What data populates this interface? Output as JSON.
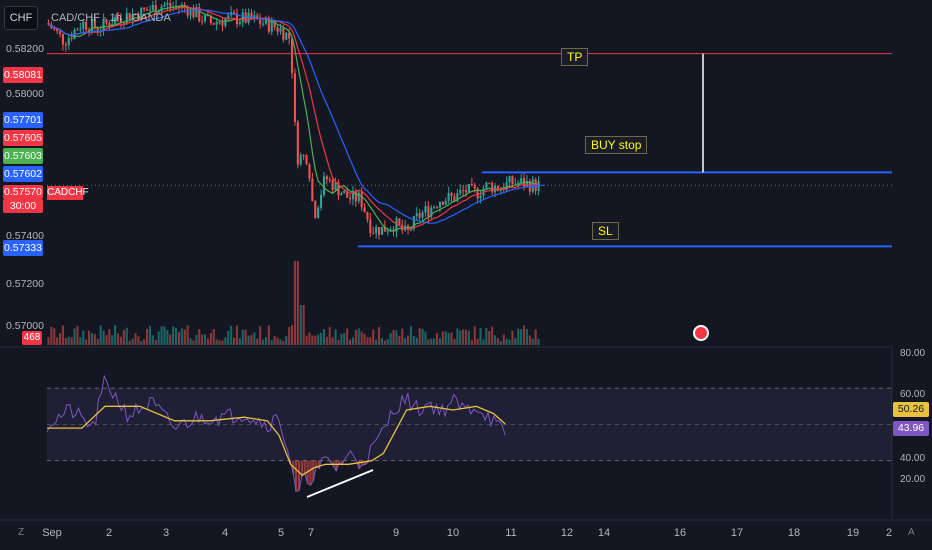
{
  "header": {
    "currency_button": "CHF",
    "title": "CAD/CHF · 1h · OANDA"
  },
  "price_axis": {
    "labels": [
      "0.58200",
      "0.58000",
      "0.57400",
      "0.57200",
      "0.57000"
    ]
  },
  "price_badges": {
    "tp": "0.58081",
    "b1": "0.57701",
    "b2": "0.57605",
    "b3": "0.57603",
    "b4": "0.57602",
    "last_price": "0.57570",
    "countdown": "30:00",
    "sl": "0.57333",
    "symbol_tag": "CADCHF",
    "volume": "468"
  },
  "annotations": {
    "tp": "TP",
    "buy_stop": "BUY stop",
    "sl": "SL"
  },
  "rsi_axis": {
    "labels": [
      "80.00",
      "60.00",
      "40.00",
      "20.00"
    ],
    "rsi_value": "43.96",
    "rsi_ma_value": "50.26"
  },
  "time_axis": {
    "labels": [
      "Sep",
      "2",
      "3",
      "4",
      "5",
      "7",
      "9",
      "10",
      "11",
      "12",
      "14",
      "16",
      "17",
      "18",
      "19",
      "2"
    ]
  },
  "corner": {
    "left": "Z",
    "right": "A"
  },
  "colors": {
    "background": "#131722",
    "up": "#26a69a",
    "down": "#ef5350",
    "ma_fast": "#f23645",
    "ma_mid": "#4caf50",
    "ma_slow": "#2962ff",
    "rsi": "#7e57c2",
    "rsi_ma": "#e8c13d",
    "tp_line": "#f23645",
    "order_lines": "#2962ff",
    "annotation_text": "#fffb00"
  },
  "chart_data": {
    "type": "candlestick",
    "symbol": "CAD/CHF",
    "interval": "1h",
    "y_range": [
      0.5695,
      0.5827
    ],
    "levels": {
      "tp": 0.58081,
      "buy_stop": 0.5762,
      "sl": 0.57333,
      "last": 0.5757
    },
    "close_path": [
      [
        0,
        0.582
      ],
      [
        3,
        0.5813
      ],
      [
        6,
        0.582
      ],
      [
        9,
        0.5818
      ],
      [
        12,
        0.5822
      ],
      [
        16,
        0.5824
      ],
      [
        20,
        0.5827
      ],
      [
        24,
        0.5826
      ],
      [
        28,
        0.582
      ],
      [
        32,
        0.5822
      ],
      [
        36,
        0.5821
      ],
      [
        40,
        0.5818
      ],
      [
        42,
        0.5814
      ],
      [
        43,
        0.5768
      ],
      [
        45,
        0.5768
      ],
      [
        46,
        0.5745
      ],
      [
        48,
        0.576
      ],
      [
        52,
        0.5752
      ],
      [
        54,
        0.5752
      ],
      [
        56,
        0.574
      ],
      [
        58,
        0.574
      ],
      [
        60,
        0.5742
      ],
      [
        62,
        0.5738
      ],
      [
        64,
        0.5745
      ],
      [
        66,
        0.5748
      ],
      [
        68,
        0.5752
      ],
      [
        70,
        0.5752
      ],
      [
        72,
        0.5755
      ],
      [
        74,
        0.5754
      ],
      [
        76,
        0.5757
      ],
      [
        78,
        0.5756
      ],
      [
        80,
        0.5758
      ],
      [
        82,
        0.5758
      ],
      [
        84,
        0.5757
      ],
      [
        85,
        0.5757
      ]
    ],
    "rsi_range": [
      0,
      90
    ],
    "rsi_levels": [
      70,
      50,
      30
    ],
    "rsi_path": [
      [
        0,
        50
      ],
      [
        4,
        58
      ],
      [
        8,
        48
      ],
      [
        10,
        74
      ],
      [
        14,
        55
      ],
      [
        18,
        62
      ],
      [
        22,
        48
      ],
      [
        26,
        54
      ],
      [
        30,
        54
      ],
      [
        34,
        56
      ],
      [
        38,
        50
      ],
      [
        40,
        54
      ],
      [
        42,
        30
      ],
      [
        43,
        9
      ],
      [
        44,
        18
      ],
      [
        46,
        22
      ],
      [
        48,
        30
      ],
      [
        50,
        26
      ],
      [
        52,
        34
      ],
      [
        54,
        28
      ],
      [
        56,
        36
      ],
      [
        58,
        46
      ],
      [
        60,
        60
      ],
      [
        62,
        64
      ],
      [
        64,
        58
      ],
      [
        66,
        62
      ],
      [
        68,
        57
      ],
      [
        70,
        63
      ],
      [
        72,
        58
      ],
      [
        74,
        60
      ],
      [
        76,
        55
      ],
      [
        78,
        48
      ],
      [
        79,
        43.96
      ]
    ],
    "rsi_ma_path": [
      [
        0,
        48
      ],
      [
        6,
        48
      ],
      [
        10,
        60
      ],
      [
        16,
        60
      ],
      [
        22,
        52
      ],
      [
        28,
        52
      ],
      [
        34,
        54
      ],
      [
        38,
        52
      ],
      [
        40,
        44
      ],
      [
        42,
        28
      ],
      [
        44,
        22
      ],
      [
        46,
        26
      ],
      [
        48,
        28
      ],
      [
        52,
        28
      ],
      [
        56,
        30
      ],
      [
        58,
        34
      ],
      [
        60,
        46
      ],
      [
        62,
        58
      ],
      [
        66,
        60
      ],
      [
        70,
        58
      ],
      [
        74,
        60
      ],
      [
        77,
        56
      ],
      [
        79,
        50.26
      ]
    ]
  }
}
